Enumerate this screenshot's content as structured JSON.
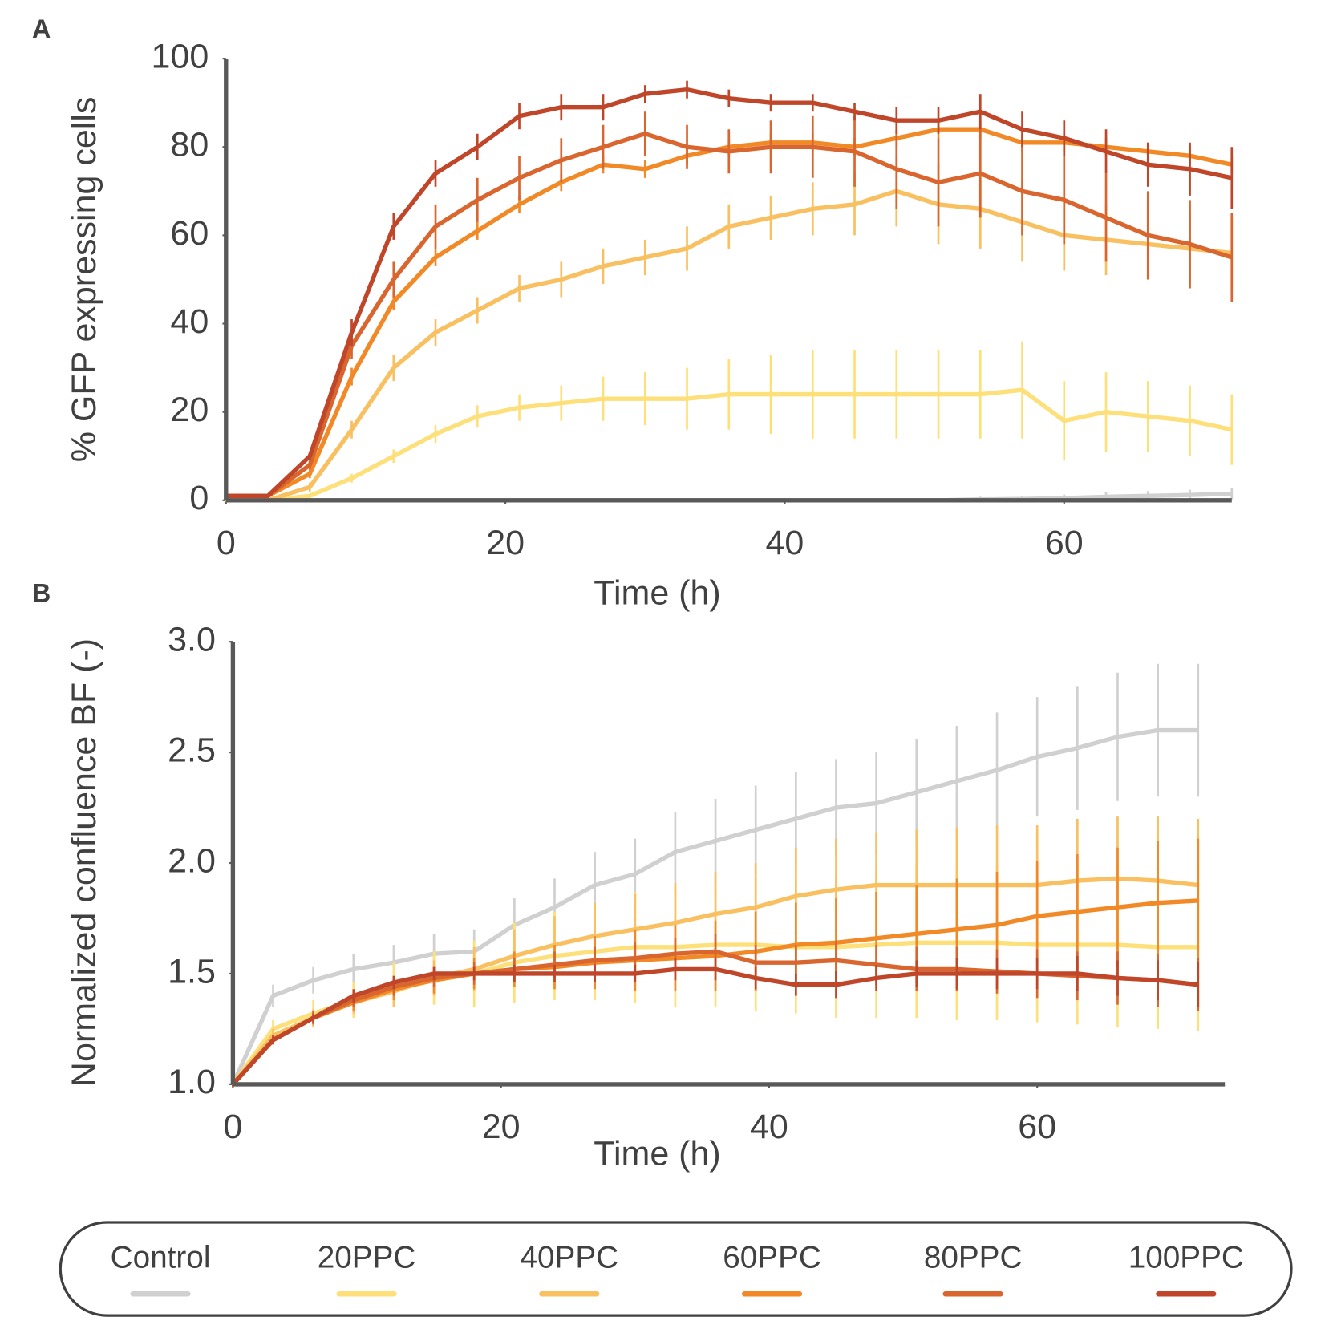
{
  "chart_data": [
    {
      "type": "line",
      "panel_label": "A",
      "x_label": "Time (h)",
      "y_label": "% GFP expressing cells",
      "x": [
        0,
        3,
        6,
        9,
        12,
        15,
        18,
        21,
        24,
        27,
        30,
        33,
        36,
        39,
        42,
        45,
        48,
        51,
        54,
        57,
        60,
        63,
        66,
        69,
        72
      ],
      "xlim": [
        0,
        72
      ],
      "xticks": [
        0,
        20,
        40,
        60
      ],
      "ylim": [
        0,
        100
      ],
      "yticks": [
        0,
        20,
        40,
        60,
        80,
        100
      ],
      "series": [
        {
          "name": "Control",
          "color": "#d0d0d0",
          "values": [
            0,
            0,
            0,
            0,
            0,
            0,
            0,
            0,
            0,
            0,
            0,
            0,
            0,
            0,
            0,
            0,
            0,
            0,
            0.2,
            0.3,
            0.5,
            0.8,
            1,
            1.2,
            1.5
          ],
          "errors": [
            0.3,
            0.3,
            0.3,
            0.3,
            0.3,
            0.3,
            0.3,
            0.3,
            0.3,
            0.3,
            0.3,
            0.3,
            0.3,
            0.3,
            0.3,
            0.3,
            0.4,
            0.5,
            0.6,
            0.7,
            0.8,
            1,
            1.1,
            1.2,
            1.3
          ]
        },
        {
          "name": "20PPC",
          "color": "#fde07a",
          "values": [
            0,
            0,
            1,
            5,
            10,
            15,
            19,
            21,
            22,
            23,
            23,
            23,
            24,
            24,
            24,
            24,
            24,
            24,
            24,
            25,
            18,
            20,
            19,
            18,
            16
          ],
          "errors": [
            0.3,
            0.3,
            0.5,
            1,
            1.5,
            2,
            2.5,
            3,
            4,
            5,
            6,
            7,
            8,
            9,
            10,
            10,
            10,
            10,
            10,
            11,
            9,
            9,
            8,
            8,
            8
          ]
        },
        {
          "name": "40PPC",
          "color": "#f8c060",
          "values": [
            0,
            0,
            3,
            16,
            30,
            38,
            43,
            48,
            50,
            53,
            55,
            57,
            62,
            64,
            66,
            67,
            70,
            67,
            66,
            63,
            60,
            59,
            58,
            57,
            56
          ],
          "errors": [
            0.3,
            0.3,
            1,
            2,
            3,
            3,
            3,
            3,
            4,
            4,
            4,
            5,
            5,
            5,
            6,
            7,
            8,
            9,
            9,
            9,
            8,
            8,
            8,
            8,
            8
          ]
        },
        {
          "name": "60PPC",
          "color": "#f18a26",
          "values": [
            1,
            1,
            6,
            28,
            45,
            55,
            61,
            67,
            72,
            76,
            75,
            78,
            80,
            81,
            81,
            80,
            82,
            84,
            84,
            81,
            81,
            80,
            79,
            78,
            76
          ],
          "errors": [
            0.3,
            0.3,
            1,
            2,
            2,
            2,
            2,
            2,
            2,
            2,
            2,
            2,
            2,
            2,
            2,
            2,
            2,
            2,
            2,
            2,
            2,
            2,
            2,
            2,
            2
          ]
        },
        {
          "name": "80PPC",
          "color": "#d9662e",
          "values": [
            1,
            1,
            8,
            35,
            50,
            62,
            68,
            73,
            77,
            80,
            83,
            80,
            79,
            80,
            80,
            79,
            75,
            72,
            74,
            70,
            68,
            64,
            60,
            58,
            55
          ],
          "errors": [
            0.3,
            0.3,
            1,
            3,
            4,
            5,
            5,
            5,
            5,
            5,
            5,
            5,
            5,
            6,
            7,
            8,
            9,
            10,
            10,
            10,
            10,
            10,
            10,
            10,
            10
          ]
        },
        {
          "name": "100PPC",
          "color": "#c0462a",
          "values": [
            1,
            1,
            10,
            38,
            62,
            74,
            80,
            87,
            89,
            89,
            92,
            93,
            91,
            90,
            90,
            88,
            86,
            86,
            88,
            84,
            82,
            79,
            76,
            75,
            73
          ],
          "errors": [
            0.3,
            0.3,
            1,
            3,
            3,
            3,
            3,
            3,
            3,
            3,
            2,
            2,
            2,
            2,
            2,
            2,
            3,
            3,
            4,
            4,
            4,
            5,
            5,
            6,
            7
          ]
        }
      ]
    },
    {
      "type": "line",
      "panel_label": "B",
      "x_label": "Time (h)",
      "y_label": "Normalized confluence BF (-)",
      "x": [
        0,
        3,
        6,
        9,
        12,
        15,
        18,
        21,
        24,
        27,
        30,
        33,
        36,
        39,
        42,
        45,
        48,
        51,
        54,
        57,
        60,
        63,
        66,
        69,
        72
      ],
      "xlim": [
        0,
        74
      ],
      "xticks": [
        0,
        20,
        40,
        60
      ],
      "ylim": [
        1,
        3
      ],
      "yticks": [
        {
          "value": 1,
          "label": "1.0"
        },
        1.5,
        {
          "value": 2,
          "label": "2.0"
        },
        2.5,
        {
          "value": 3,
          "label": "3.0"
        }
      ],
      "series": [
        {
          "name": "Control",
          "color": "#d0d0d0",
          "values": [
            1.0,
            1.4,
            1.47,
            1.52,
            1.55,
            1.59,
            1.6,
            1.72,
            1.8,
            1.9,
            1.95,
            2.05,
            2.1,
            2.15,
            2.2,
            2.25,
            2.27,
            2.32,
            2.37,
            2.42,
            2.48,
            2.52,
            2.57,
            2.6,
            2.6
          ],
          "errors": [
            0.01,
            0.05,
            0.06,
            0.07,
            0.08,
            0.09,
            0.1,
            0.12,
            0.13,
            0.15,
            0.16,
            0.18,
            0.19,
            0.2,
            0.21,
            0.22,
            0.23,
            0.24,
            0.25,
            0.26,
            0.27,
            0.28,
            0.29,
            0.3,
            0.3
          ]
        },
        {
          "name": "20PPC",
          "color": "#fde07a",
          "values": [
            1.0,
            1.25,
            1.32,
            1.38,
            1.45,
            1.48,
            1.5,
            1.55,
            1.58,
            1.6,
            1.62,
            1.62,
            1.63,
            1.63,
            1.62,
            1.62,
            1.63,
            1.64,
            1.64,
            1.64,
            1.63,
            1.63,
            1.63,
            1.62,
            1.62
          ],
          "errors": [
            0.01,
            0.04,
            0.06,
            0.08,
            0.1,
            0.12,
            0.15,
            0.18,
            0.2,
            0.22,
            0.25,
            0.27,
            0.28,
            0.3,
            0.3,
            0.32,
            0.33,
            0.34,
            0.35,
            0.35,
            0.35,
            0.36,
            0.37,
            0.37,
            0.38
          ]
        },
        {
          "name": "40PPC",
          "color": "#f8c060",
          "values": [
            1.0,
            1.22,
            1.3,
            1.37,
            1.42,
            1.48,
            1.52,
            1.58,
            1.63,
            1.67,
            1.7,
            1.73,
            1.77,
            1.8,
            1.85,
            1.88,
            1.9,
            1.9,
            1.9,
            1.9,
            1.9,
            1.92,
            1.93,
            1.92,
            1.9
          ],
          "errors": [
            0.01,
            0.03,
            0.04,
            0.05,
            0.07,
            0.08,
            0.1,
            0.12,
            0.13,
            0.15,
            0.16,
            0.18,
            0.19,
            0.2,
            0.22,
            0.23,
            0.24,
            0.25,
            0.26,
            0.27,
            0.27,
            0.28,
            0.28,
            0.29,
            0.3
          ]
        },
        {
          "name": "60PPC",
          "color": "#f18a26",
          "values": [
            1.0,
            1.2,
            1.3,
            1.37,
            1.43,
            1.47,
            1.5,
            1.52,
            1.53,
            1.55,
            1.56,
            1.57,
            1.58,
            1.6,
            1.63,
            1.64,
            1.66,
            1.68,
            1.7,
            1.72,
            1.76,
            1.78,
            1.8,
            1.82,
            1.83
          ],
          "errors": [
            0.01,
            0.02,
            0.03,
            0.04,
            0.05,
            0.06,
            0.07,
            0.08,
            0.1,
            0.12,
            0.14,
            0.15,
            0.16,
            0.18,
            0.19,
            0.2,
            0.21,
            0.22,
            0.23,
            0.24,
            0.25,
            0.26,
            0.27,
            0.28,
            0.28
          ]
        },
        {
          "name": "80PPC",
          "color": "#d9662e",
          "values": [
            1.0,
            1.2,
            1.3,
            1.38,
            1.44,
            1.48,
            1.5,
            1.52,
            1.54,
            1.56,
            1.57,
            1.59,
            1.6,
            1.55,
            1.55,
            1.56,
            1.54,
            1.52,
            1.52,
            1.51,
            1.5,
            1.49,
            1.48,
            1.47,
            1.45
          ],
          "errors": [
            0.01,
            0.02,
            0.03,
            0.03,
            0.04,
            0.04,
            0.05,
            0.05,
            0.06,
            0.06,
            0.07,
            0.07,
            0.08,
            0.08,
            0.08,
            0.09,
            0.09,
            0.1,
            0.1,
            0.1,
            0.11,
            0.11,
            0.12,
            0.12,
            0.12
          ]
        },
        {
          "name": "100PPC",
          "color": "#c0462a",
          "values": [
            1.0,
            1.2,
            1.3,
            1.4,
            1.46,
            1.5,
            1.5,
            1.5,
            1.5,
            1.5,
            1.5,
            1.52,
            1.52,
            1.48,
            1.45,
            1.45,
            1.48,
            1.5,
            1.5,
            1.5,
            1.5,
            1.5,
            1.48,
            1.47,
            1.45
          ],
          "errors": [
            0.01,
            0.02,
            0.02,
            0.03,
            0.03,
            0.03,
            0.03,
            0.04,
            0.04,
            0.04,
            0.04,
            0.05,
            0.05,
            0.05,
            0.05,
            0.06,
            0.06,
            0.06,
            0.07,
            0.07,
            0.07,
            0.08,
            0.08,
            0.09,
            0.1
          ]
        }
      ]
    }
  ]
}
